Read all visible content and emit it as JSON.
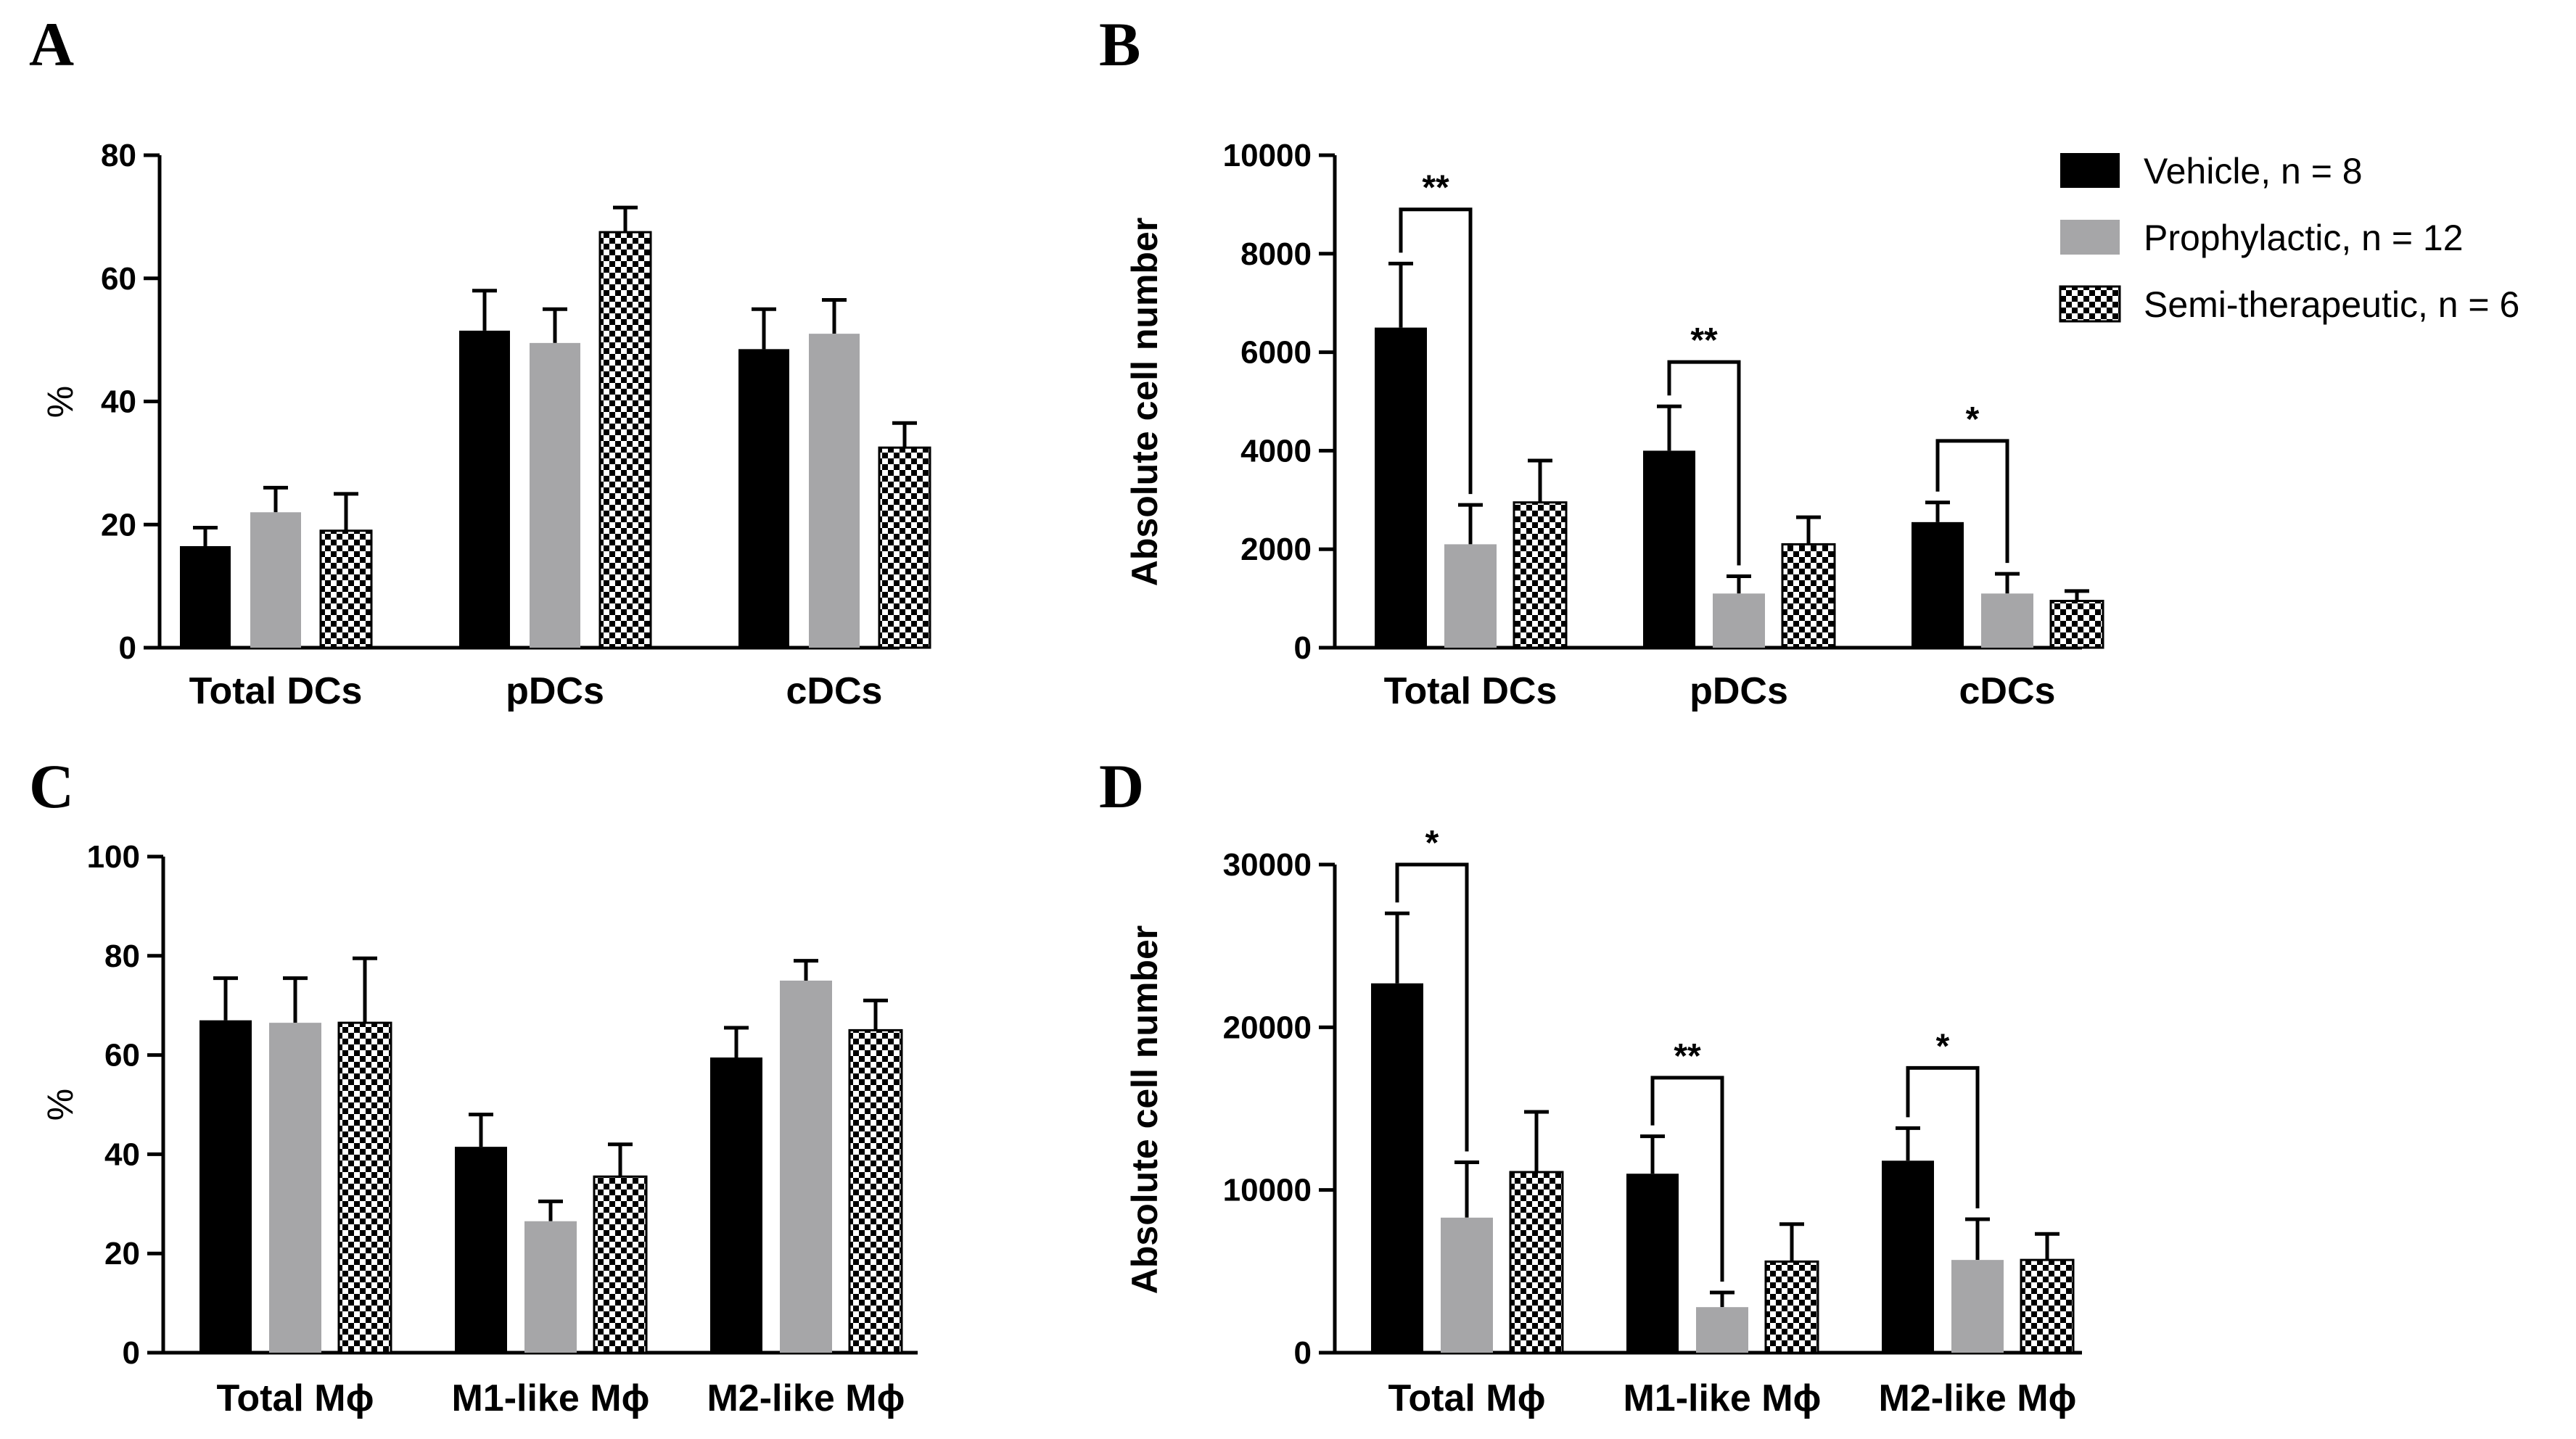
{
  "series_meta": [
    {
      "name": "Vehicle, n = 8",
      "style": "solid",
      "color": "#000000"
    },
    {
      "name": "Prophylactic, n = 12",
      "style": "solid",
      "color": "#a6a6a8"
    },
    {
      "name": "Semi-therapeutic, n = 6",
      "style": "checker",
      "color": "#000000"
    }
  ],
  "chart_data": [
    {
      "panel": "A",
      "type": "bar",
      "ylabel": "%",
      "ylim": [
        0,
        80
      ],
      "yticks": [
        "0",
        "20",
        "40",
        "60",
        "80"
      ],
      "categories": [
        "Total DCs",
        "pDCs",
        "cDCs"
      ],
      "series": [
        {
          "name": "Vehicle, n = 8",
          "values": [
            16.5,
            51.5,
            48.5
          ],
          "errors": [
            3.0,
            6.5,
            6.5
          ]
        },
        {
          "name": "Prophylactic, n = 12",
          "values": [
            22,
            49.5,
            51
          ],
          "errors": [
            4.0,
            5.5,
            5.5
          ]
        },
        {
          "name": "Semi-therapeutic, n = 6",
          "values": [
            19,
            67.5,
            32.5
          ],
          "errors": [
            6.0,
            4.0,
            4.0
          ]
        }
      ],
      "significance": []
    },
    {
      "panel": "B",
      "type": "bar",
      "ylabel": "Absolute cell number",
      "ylim": [
        0,
        10000
      ],
      "yticks": [
        "0",
        "2000",
        "4000",
        "6000",
        "8000",
        "10000"
      ],
      "categories": [
        "Total DCs",
        "pDCs",
        "cDCs"
      ],
      "series": [
        {
          "name": "Vehicle, n = 8",
          "values": [
            6500,
            4000,
            2550
          ],
          "errors": [
            1300,
            900,
            400
          ]
        },
        {
          "name": "Prophylactic, n = 12",
          "values": [
            2100,
            1100,
            1100
          ],
          "errors": [
            800,
            350,
            400
          ]
        },
        {
          "name": "Semi-therapeutic, n = 6",
          "values": [
            2950,
            2100,
            950
          ],
          "errors": [
            850,
            550,
            200
          ]
        }
      ],
      "significance": [
        {
          "category": 0,
          "label": "**",
          "level": 8900
        },
        {
          "category": 1,
          "label": "**",
          "level": 5800
        },
        {
          "category": 2,
          "label": "*",
          "level": 4200
        }
      ],
      "legend": [
        "Vehicle, n = 8",
        "Prophylactic, n = 12",
        "Semi-therapeutic, n = 6"
      ],
      "legend_position": "top-right"
    },
    {
      "panel": "C",
      "type": "bar",
      "ylabel": "%",
      "ylim": [
        0,
        100
      ],
      "yticks": [
        "0",
        "20",
        "40",
        "60",
        "80",
        "100"
      ],
      "categories": [
        "Total Mϕ",
        "M1-like Mϕ",
        "M2-like Mϕ"
      ],
      "series": [
        {
          "name": "Vehicle, n = 8",
          "values": [
            67,
            41.5,
            59.5
          ],
          "errors": [
            8.5,
            6.5,
            6.0
          ]
        },
        {
          "name": "Prophylactic, n = 12",
          "values": [
            66.5,
            26.5,
            75
          ],
          "errors": [
            9.0,
            4.0,
            4.0
          ]
        },
        {
          "name": "Semi-therapeutic, n = 6",
          "values": [
            66.5,
            35.5,
            65
          ],
          "errors": [
            13.0,
            6.5,
            6.0
          ]
        }
      ],
      "significance": []
    },
    {
      "panel": "D",
      "type": "bar",
      "ylabel": "Absolute cell number",
      "ylim": [
        0,
        30000
      ],
      "yticks": [
        "0",
        "10000",
        "20000",
        "30000"
      ],
      "categories": [
        "Total Mϕ",
        "M1-like Mϕ",
        "M2-like Mϕ"
      ],
      "series": [
        {
          "name": "Vehicle, n = 8",
          "values": [
            22700,
            11000,
            11800
          ],
          "errors": [
            4300,
            2300,
            2000
          ]
        },
        {
          "name": "Prophylactic, n = 12",
          "values": [
            8300,
            2800,
            5700
          ],
          "errors": [
            3400,
            900,
            2500
          ]
        },
        {
          "name": "Semi-therapeutic, n = 6",
          "values": [
            11100,
            5600,
            5700
          ],
          "errors": [
            3700,
            2300,
            1600
          ]
        }
      ],
      "significance": [
        {
          "category": 0,
          "label": "*",
          "level": 30000
        },
        {
          "category": 1,
          "label": "**",
          "level": 16900
        },
        {
          "category": 2,
          "label": "*",
          "level": 17500
        }
      ]
    }
  ]
}
